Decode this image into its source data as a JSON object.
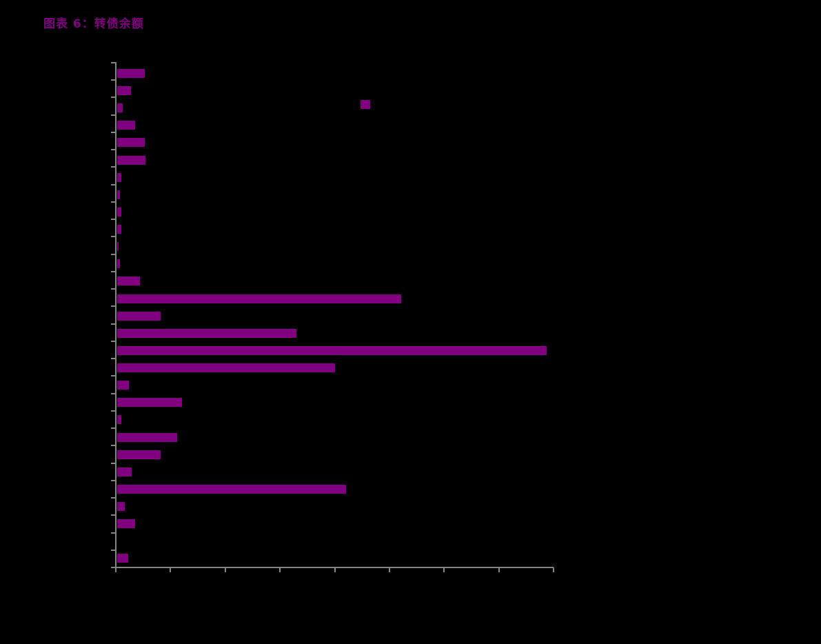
{
  "page": {
    "background": "#000000"
  },
  "figure": {
    "label": "图表 6：转债余额"
  },
  "chart_data": {
    "type": "bar",
    "orientation": "horizontal",
    "title": "图表 6：转债余额",
    "series": [
      {
        "name": "转债余额",
        "values": [
          5.0,
          2.5,
          1.0,
          3.3,
          5.0,
          5.2,
          0.8,
          0.5,
          0.8,
          0.8,
          0.3,
          0.5,
          4.1,
          51.9,
          7.9,
          32.7,
          78.5,
          39.8,
          2.1,
          11.9,
          0.8,
          11.0,
          7.9,
          2.6,
          41.8,
          1.4,
          3.3,
          0.0,
          2.0
        ]
      }
    ],
    "n_categories": 29,
    "category_axis": "y",
    "category_tick_labels_visible": false,
    "value_axis_tick_labels_visible": false,
    "xlim": [
      0,
      80
    ],
    "x_tick_step": 10,
    "x_tick_count": 9,
    "grid": false,
    "legend": {
      "marker_visible": true,
      "label_text_visible": false,
      "position": "inside-upper-middle"
    },
    "colors": {
      "bar": "#800080",
      "axis": "#858585",
      "title": "#800080",
      "background": "#000000"
    }
  }
}
